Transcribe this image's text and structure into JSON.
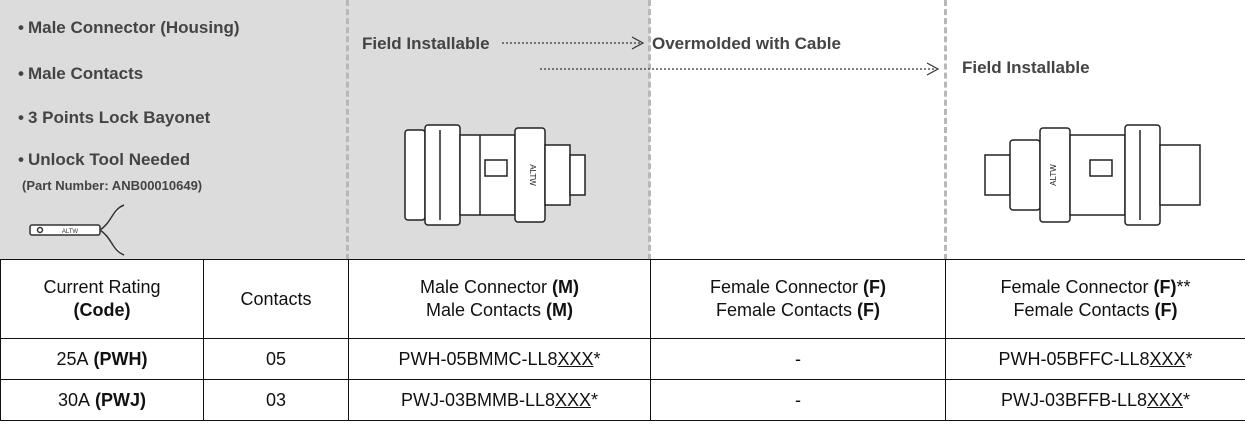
{
  "top": {
    "features": [
      "Male Connector (Housing)",
      "Male Contacts",
      "3 Points Lock Bayonet",
      "Unlock Tool Needed"
    ],
    "part_number_note": "(Part Number: ANB00010649)",
    "brand": "ALTW",
    "columns": [
      "Field Installable",
      "Overmolded with Cable",
      "Field Installable"
    ]
  },
  "table": {
    "header": [
      [
        {
          "text": "Current Rating"
        },
        {
          "bold": "(Code)"
        }
      ],
      [
        {
          "text": "Contacts"
        }
      ],
      [
        {
          "text": "Male Connector",
          "bold": "(M)"
        },
        {
          "text": "Male Contacts",
          "bold": "(M)"
        }
      ],
      [
        {
          "text": "Female Connector",
          "bold": "(F)"
        },
        {
          "text": "Female Contacts",
          "bold": "(F)"
        }
      ],
      [
        {
          "text": "Female Connector",
          "bold": "(F)",
          "suffix": "**"
        },
        {
          "text": "Female Contacts",
          "bold": "(F)"
        }
      ]
    ],
    "rows": [
      [
        [
          {
            "text": "25A",
            "bold": "(PWH)"
          }
        ],
        [
          {
            "text": "05"
          }
        ],
        [
          {
            "text": "PWH-05BMMC-LL8",
            "underlined": "XXX",
            "suffix": "*"
          }
        ],
        [
          {
            "text": "-"
          }
        ],
        [
          {
            "text": "PWH-05BFFC-LL8",
            "underlined": "XXX",
            "suffix": "*"
          }
        ]
      ],
      [
        [
          {
            "text": "30A",
            "bold": "(PWJ)"
          }
        ],
        [
          {
            "text": "03"
          }
        ],
        [
          {
            "text": "PWJ-03BMMB-LL8",
            "underlined": "XXX",
            "suffix": "*"
          }
        ],
        [
          {
            "text": "-"
          }
        ],
        [
          {
            "text": "PWJ-03BFFB-LL8",
            "underlined": "XXX",
            "suffix": "*"
          }
        ]
      ]
    ]
  }
}
